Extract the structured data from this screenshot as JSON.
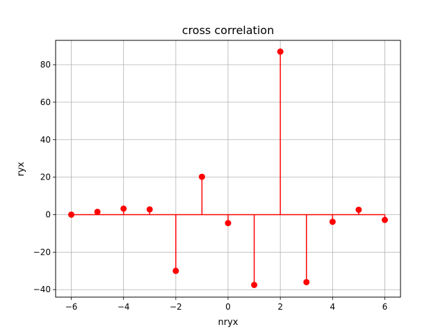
{
  "chart_data": {
    "type": "stem",
    "title": "cross correlation",
    "xlabel": "nryx",
    "ylabel": "ryx",
    "x": [
      -6,
      -5,
      -4,
      -3,
      -2,
      -1,
      0,
      1,
      2,
      3,
      4,
      5,
      6
    ],
    "y": [
      0,
      1.5,
      3.2,
      2.8,
      -30,
      20.2,
      -4.5,
      -37.5,
      87,
      -36,
      -3.8,
      2.6,
      -2.8
    ],
    "xlim": [
      -6.6,
      6.6
    ],
    "ylim": [
      -44,
      93
    ],
    "xticks": [
      -6,
      -4,
      -2,
      0,
      2,
      4,
      6
    ],
    "yticks": [
      -40,
      -20,
      0,
      20,
      40,
      60,
      80
    ],
    "xtick_labels": [
      "−6",
      "−4",
      "−2",
      "0",
      "2",
      "4",
      "6"
    ],
    "ytick_labels": [
      "−40",
      "−20",
      "0",
      "20",
      "40",
      "60",
      "80"
    ],
    "grid": true,
    "color": "#ff0000",
    "baseline_color": "#ff0000"
  }
}
